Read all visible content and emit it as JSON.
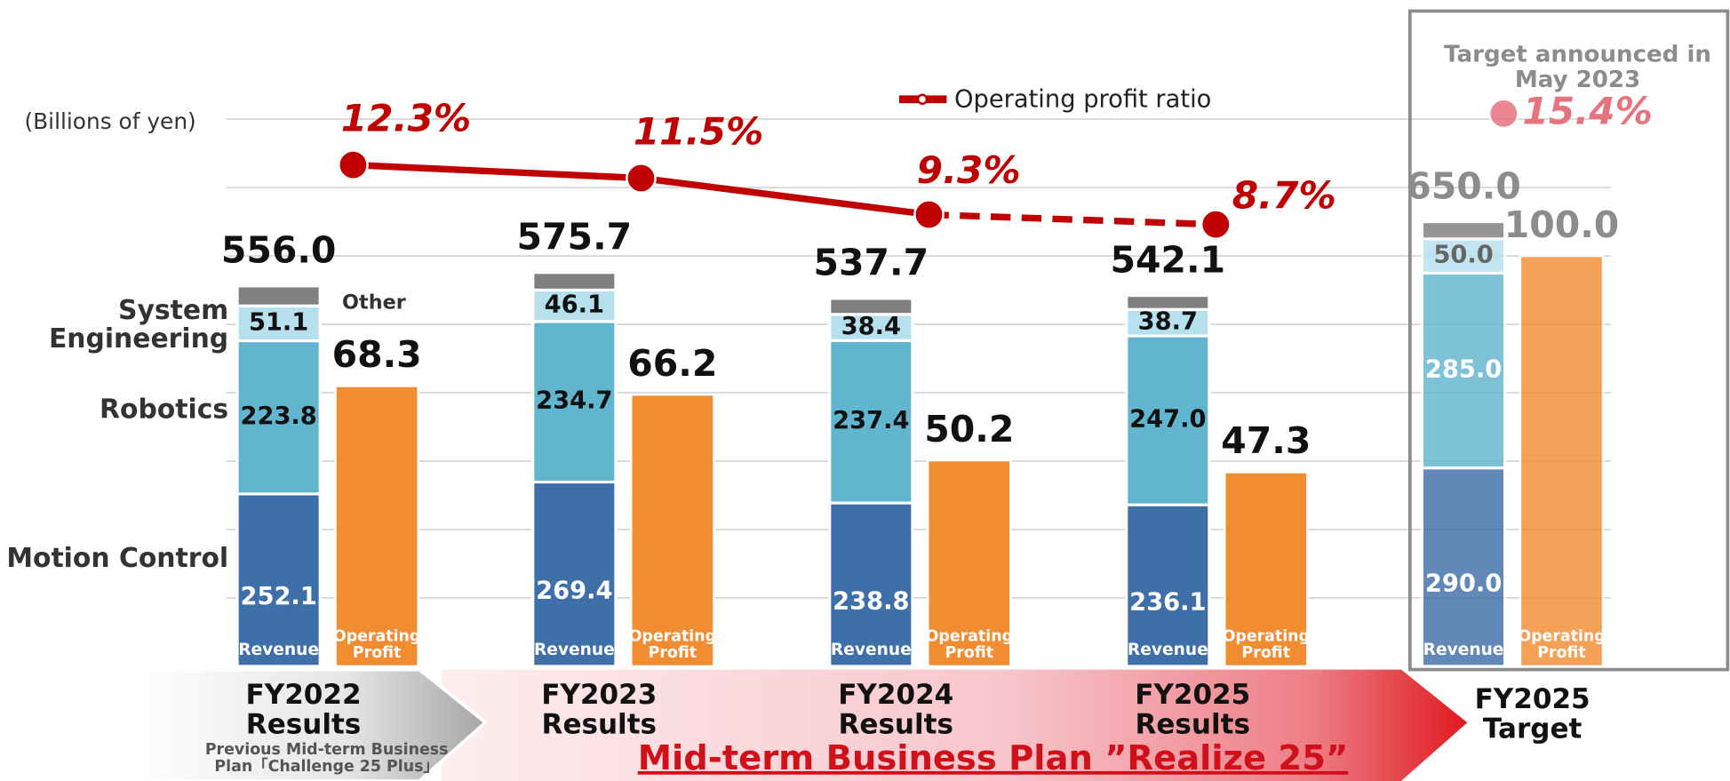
{
  "chart_data": {
    "type": "stacked_bar_line",
    "unit_label": "(Billions of yen)",
    "categories": [
      "FY2022 Results",
      "FY2023 Results",
      "FY2024 Results",
      "FY2025 Results",
      "FY2025 Target"
    ],
    "annotations": {
      "previous_plan": "Previous Mid-term Business Plan「Challenge 25 Plus」",
      "current_plan": "Mid-term Business Plan ”Realize 25”",
      "target_note": "Target announced in May 2023"
    },
    "bar_labels": {
      "revenue": "Revenue",
      "profit": "Operating Profit"
    },
    "series": [
      {
        "name": "Motion Control",
        "color": "#3f6fa8",
        "values": [
          252.1,
          269.4,
          238.8,
          236.1,
          290.0
        ],
        "value_labels": [
          "252.1",
          "269.4",
          "238.8",
          "236.1",
          "290.0"
        ]
      },
      {
        "name": "Robotics",
        "color": "#62b5cf",
        "values": [
          223.8,
          234.7,
          237.4,
          247.0,
          285.0
        ],
        "value_labels": [
          "223.8",
          "234.7",
          "237.4",
          "247.0",
          "285.0"
        ]
      },
      {
        "name": "System Engineering",
        "color": "#b7e0ee",
        "values": [
          51.1,
          46.1,
          38.4,
          38.7,
          50.0
        ],
        "value_labels": [
          "51.1",
          "46.1",
          "38.4",
          "38.7",
          "50.0"
        ]
      },
      {
        "name": "Other",
        "color": "#808080",
        "values": [
          29.0,
          25.5,
          23.1,
          20.3,
          25.0
        ]
      }
    ],
    "totals": {
      "values": [
        556.0,
        575.7,
        537.7,
        542.1,
        650.0
      ],
      "value_labels": [
        "556.0",
        "575.7",
        "537.7",
        "542.1",
        "650.0"
      ]
    },
    "profit": {
      "color": "#f28c31",
      "axis": "y2",
      "values": [
        68.3,
        66.2,
        50.2,
        47.3,
        100.0
      ],
      "value_labels": [
        "68.3",
        "66.2",
        "50.2",
        "47.3",
        "100.0"
      ]
    },
    "ratio": {
      "name": "Operating profit ratio",
      "color": "#c00000",
      "axis": "y3",
      "values": [
        12.3,
        11.5,
        9.3,
        8.7,
        15.4
      ],
      "value_labels": [
        "12.3%",
        "11.5%",
        "9.3%",
        "8.7%",
        "15.4%"
      ],
      "dashed_from": 2,
      "connected_points": 4
    },
    "ylim": [
      0,
      900
    ],
    "y2lim": [
      0,
      150
    ],
    "y3lim": [
      -18,
      19.2
    ],
    "grid_values": [
      100,
      200,
      300,
      400,
      500,
      600,
      700,
      800
    ],
    "faded_last": true
  }
}
